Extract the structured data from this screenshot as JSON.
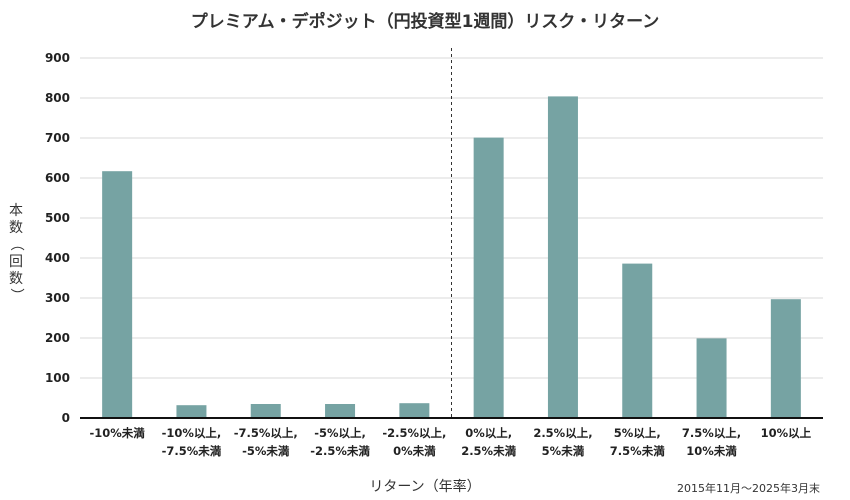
{
  "chart_data": {
    "type": "bar",
    "title": "プレミアム・デポジット（円投資型1週間）リスク・リターン",
    "xlabel": "リターン（年率）",
    "ylabel": "本数（回数）",
    "note": "2015年11月～2025年3月末",
    "categories": [
      [
        "-10%未満"
      ],
      [
        "-10%以上,",
        "-7.5%未満"
      ],
      [
        "-7.5%以上,",
        "-5%未満"
      ],
      [
        "-5%以上,",
        "-2.5%未満"
      ],
      [
        "-2.5%以上,",
        "0%未満"
      ],
      [
        "0%以上,",
        "2.5%未満"
      ],
      [
        "2.5%以上,",
        "5%未満"
      ],
      [
        "5%以上,",
        "7.5%未満"
      ],
      [
        "7.5%以上,",
        "10%未満"
      ],
      [
        "10%以上"
      ]
    ],
    "values": [
      617,
      32,
      35,
      35,
      37,
      701,
      804,
      386,
      199,
      297
    ],
    "ylim": [
      0,
      900
    ],
    "yticks": [
      0,
      100,
      200,
      300,
      400,
      500,
      600,
      700,
      800,
      900
    ],
    "bar_color": "#76a3a3",
    "divider": "dashed line between -2.5%以上,0%未満 and 0%以上,2.5%未満",
    "grid": true
  }
}
